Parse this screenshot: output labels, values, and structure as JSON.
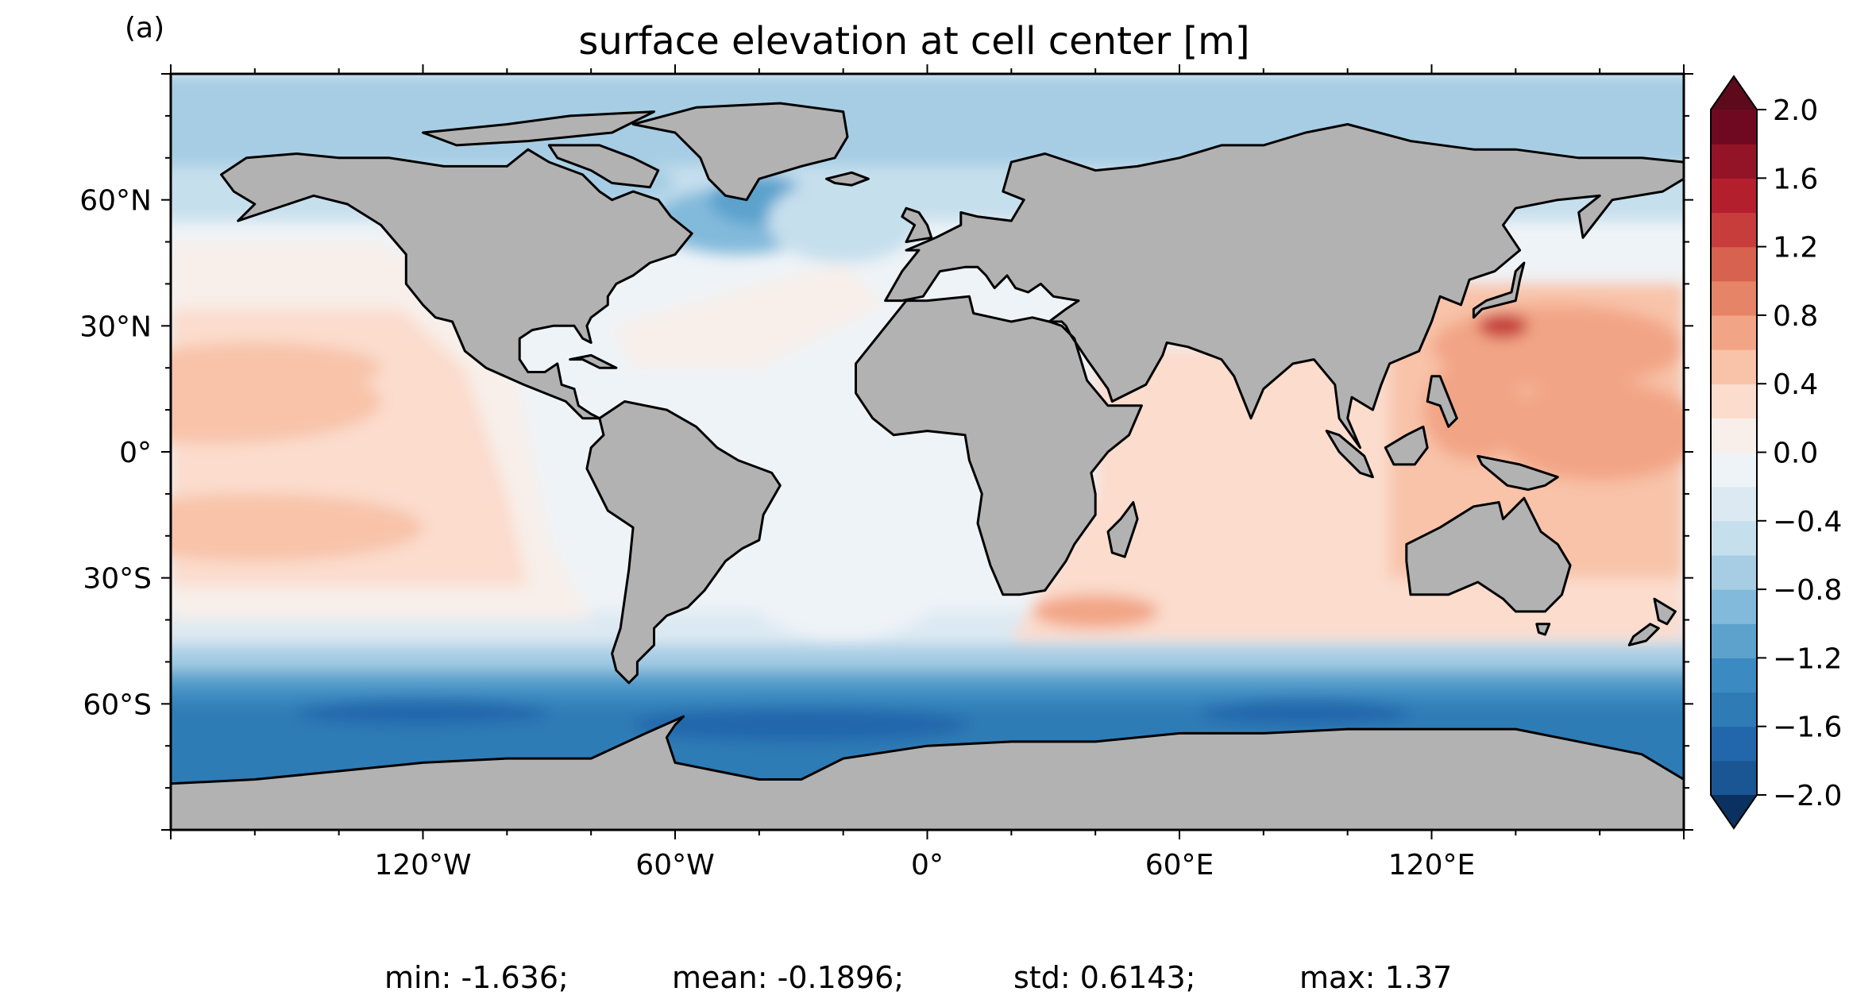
{
  "panel_label": "(a)",
  "title": "surface elevation at cell center [m]",
  "map": {
    "projection": "plate-carree",
    "lon_range": [
      -180,
      180
    ],
    "lat_range": [
      -90,
      90
    ],
    "lon_ticks": [
      {
        "value": -120,
        "label": "120°W"
      },
      {
        "value": -60,
        "label": "60°W"
      },
      {
        "value": 0,
        "label": "0°"
      },
      {
        "value": 60,
        "label": "60°E"
      },
      {
        "value": 120,
        "label": "120°E"
      }
    ],
    "lat_ticks": [
      {
        "value": 60,
        "label": "60°N"
      },
      {
        "value": 30,
        "label": "30°N"
      },
      {
        "value": 0,
        "label": "0°"
      },
      {
        "value": -30,
        "label": "30°S"
      },
      {
        "value": -60,
        "label": "60°S"
      }
    ],
    "land_color": "#b2b2b2",
    "coast_color": "#000000"
  },
  "colorbar": {
    "cmap": "RdBu_r",
    "range": [
      -2.0,
      2.0
    ],
    "extend": "both",
    "levels": [
      -2.0,
      -1.8,
      -1.6,
      -1.4,
      -1.2,
      -1.0,
      -0.8,
      -0.6,
      -0.4,
      -0.2,
      0.0,
      0.2,
      0.4,
      0.6,
      0.8,
      1.0,
      1.2,
      1.4,
      1.6,
      1.8,
      2.0
    ],
    "colors": [
      "#1a5693",
      "#2266ab",
      "#2f7bb6",
      "#3b8ac1",
      "#5ca2cd",
      "#82badb",
      "#a6cde4",
      "#c6dfed",
      "#dce9f2",
      "#eef3f7",
      "#f8efea",
      "#fbdccd",
      "#f8c3a9",
      "#f2a586",
      "#e68468",
      "#d7624f",
      "#c63d3b",
      "#b41f2e",
      "#931427",
      "#6f0921"
    ],
    "under_color": "#0b3160",
    "over_color": "#5c0a1c",
    "tick_labels": [
      {
        "value": 2.0,
        "label": "2.0"
      },
      {
        "value": 1.6,
        "label": "1.6"
      },
      {
        "value": 1.2,
        "label": "1.2"
      },
      {
        "value": 0.8,
        "label": "0.8"
      },
      {
        "value": 0.4,
        "label": "0.4"
      },
      {
        "value": 0.0,
        "label": "0.0"
      },
      {
        "value": -0.4,
        "label": "−0.4"
      },
      {
        "value": -0.8,
        "label": "−0.8"
      },
      {
        "value": -1.2,
        "label": "−1.2"
      },
      {
        "value": -1.6,
        "label": "−1.6"
      },
      {
        "value": -2.0,
        "label": "−2.0"
      }
    ]
  },
  "stats": {
    "min": "min: -1.636;",
    "mean": "mean: -0.1896;",
    "std": "std: 0.6143;",
    "max": "max: 1.37"
  }
}
